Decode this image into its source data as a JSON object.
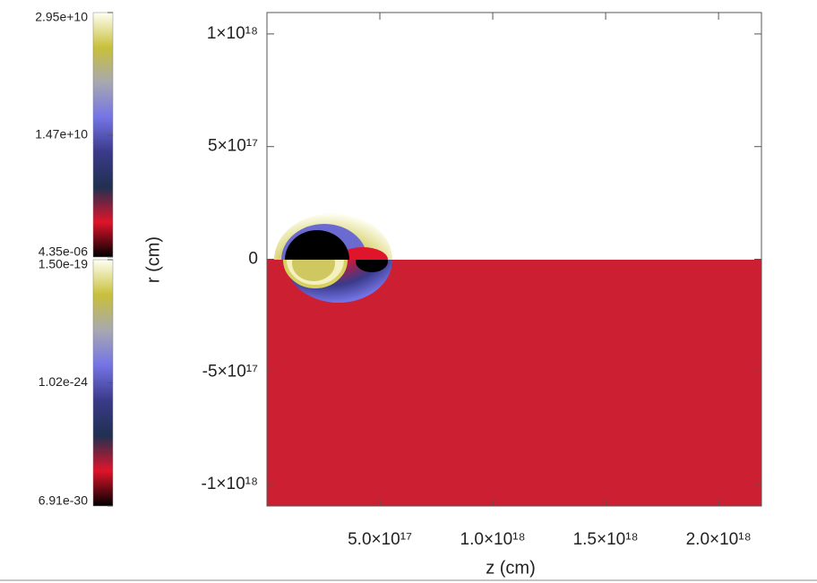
{
  "chart_data": {
    "type": "heatmap",
    "xlabel": "z (cm)",
    "ylabel": "r (cm)",
    "xlim": [
      0,
      2.19e+18
    ],
    "ylim": [
      -1.095e+18,
      1.095e+18
    ],
    "xticks": [
      {
        "value": 5e+17,
        "label": "5.0×10¹⁷"
      },
      {
        "value": 1e+18,
        "label": "1.0×10¹⁸"
      },
      {
        "value": 1.5e+18,
        "label": "1.5×10¹⁸"
      },
      {
        "value": 2e+18,
        "label": "2.0×10¹⁸"
      }
    ],
    "yticks": [
      {
        "value": 1e+18,
        "label": "1×10¹⁸"
      },
      {
        "value": 5e+17,
        "label": "5×10¹⁷"
      },
      0,
      {
        "value": -5e+17,
        "label": "-5×10¹⁷"
      },
      {
        "value": -1e+18,
        "label": "-1×10¹⁸"
      }
    ],
    "colormap": [
      "#000000",
      "#e0142a",
      "#203050",
      "#3a3a8a",
      "#7474e6",
      "#a8a8b0",
      "#c8c03a",
      "#fffff4"
    ],
    "lower_fill": "#cc1f32",
    "colorbars": [
      {
        "scale": "linear",
        "lim": [
          4.35e-06,
          29500000000.0
        ],
        "ticks": [
          {
            "value": 29500000000.0,
            "label": "2.95e+10"
          },
          {
            "value": 14700000000.0,
            "label": "1.47e+10"
          },
          {
            "value": 4.35e-06,
            "label": "4.35e-06"
          }
        ]
      },
      {
        "scale": "log",
        "lim": [
          6.91e-30,
          1.5e-19
        ],
        "ticks": [
          {
            "value": 1.5e-19,
            "label": "1.50e-19"
          },
          {
            "value": 1.02e-24,
            "label": "1.02e-24"
          },
          {
            "value": 6.91e-30,
            "label": "6.91e-30"
          }
        ]
      }
    ]
  }
}
